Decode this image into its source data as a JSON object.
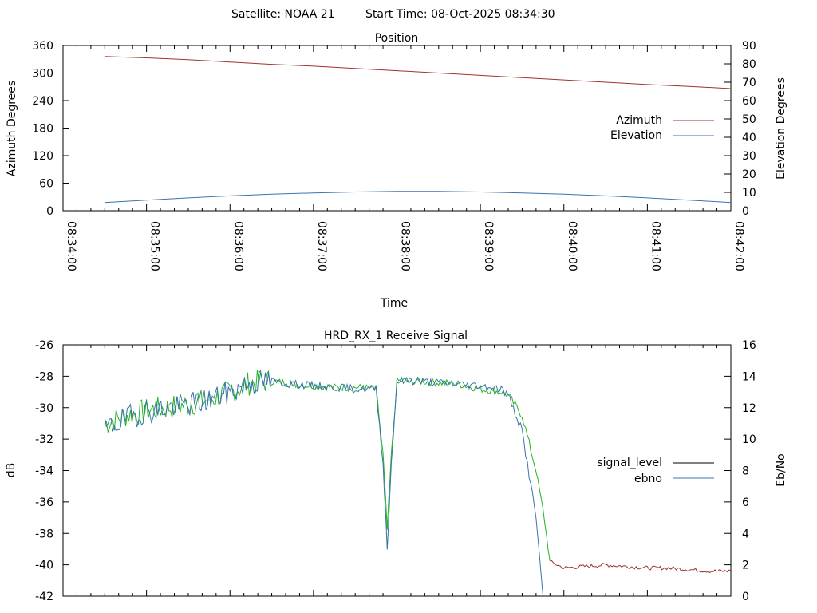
{
  "header": {
    "satellite": "Satellite: NOAA 21",
    "start_time": "Start Time: 08-Oct-2025 08:34:30"
  },
  "chart_data": [
    {
      "type": "line",
      "title": "Position",
      "xlabel": "Time",
      "ylabel": "Azimuth Degrees",
      "y2label": "Elevation Degrees",
      "xlim": [
        "08:34:00",
        "08:42:00"
      ],
      "x_ticks": [
        "08:34:00",
        "08:35:00",
        "08:36:00",
        "08:37:00",
        "08:38:00",
        "08:39:00",
        "08:40:00",
        "08:41:00",
        "08:42:00"
      ],
      "ylim": [
        0,
        360
      ],
      "y_ticks": [
        "0",
        "60",
        "120",
        "180",
        "240",
        "300",
        "360"
      ],
      "y2lim": [
        0,
        90
      ],
      "y2_ticks": [
        "0",
        "10",
        "20",
        "30",
        "40",
        "50",
        "60",
        "70",
        "80",
        "90"
      ],
      "legend_position": "right",
      "series": [
        {
          "name": "Azimuth",
          "axis": "y",
          "color": "#a0332d",
          "x": [
            "08:34:30",
            "08:35:00",
            "08:35:30",
            "08:36:00",
            "08:36:30",
            "08:37:00",
            "08:37:30",
            "08:38:00",
            "08:38:30",
            "08:39:00",
            "08:39:30",
            "08:40:00",
            "08:40:30",
            "08:41:00",
            "08:41:30",
            "08:42:00"
          ],
          "values": [
            336,
            333,
            329,
            324,
            319,
            315,
            310,
            305,
            300,
            295,
            290,
            285,
            280,
            275,
            271,
            266
          ]
        },
        {
          "name": "Elevation",
          "axis": "y2",
          "color": "#3a73ac",
          "x": [
            "08:34:30",
            "08:35:00",
            "08:35:30",
            "08:36:00",
            "08:36:30",
            "08:37:00",
            "08:37:30",
            "08:38:00",
            "08:38:30",
            "08:39:00",
            "08:39:30",
            "08:40:00",
            "08:40:30",
            "08:41:00",
            "08:41:30",
            "08:42:00"
          ],
          "values": [
            4.5,
            5.8,
            7.0,
            8.1,
            9.0,
            9.7,
            10.2,
            10.5,
            10.5,
            10.2,
            9.7,
            9.0,
            8.1,
            7.0,
            5.8,
            4.5
          ]
        }
      ]
    },
    {
      "type": "line",
      "title": "HRD_RX_1 Receive Signal",
      "ylabel": "dB",
      "y2label": "Eb/No",
      "xlim": [
        "08:34:00",
        "08:42:00"
      ],
      "ylim": [
        -42,
        -26
      ],
      "y_ticks": [
        "-42",
        "-40",
        "-38",
        "-36",
        "-34",
        "-32",
        "-30",
        "-28",
        "-26"
      ],
      "y2lim": [
        0,
        16
      ],
      "y2_ticks": [
        "0",
        "2",
        "4",
        "6",
        "8",
        "10",
        "12",
        "14",
        "16"
      ],
      "legend_position": "right",
      "series": [
        {
          "name": "signal_level",
          "axis": "y",
          "color": "#22b522",
          "low_color": "#a0332d",
          "legend_color": "#000000",
          "x": [
            "08:34:30",
            "08:34:45",
            "08:35:00",
            "08:35:15",
            "08:35:30",
            "08:35:45",
            "08:36:00",
            "08:36:15",
            "08:36:30",
            "08:36:45",
            "08:37:00",
            "08:37:15",
            "08:37:30",
            "08:37:45",
            "08:37:50",
            "08:37:53",
            "08:37:56",
            "08:38:00",
            "08:38:15",
            "08:38:30",
            "08:38:45",
            "08:39:00",
            "08:39:15",
            "08:39:20",
            "08:39:30",
            "08:39:40",
            "08:39:45",
            "08:39:50",
            "08:40:00",
            "08:40:15",
            "08:40:30",
            "08:40:45",
            "08:41:00",
            "08:41:15",
            "08:41:30",
            "08:41:45",
            "08:42:00"
          ],
          "values": [
            -31.0,
            -30.5,
            -30.2,
            -30.0,
            -29.8,
            -29.5,
            -29.0,
            -28.4,
            -28.3,
            -28.5,
            -28.6,
            -28.7,
            -28.7,
            -28.8,
            -33.0,
            -37.8,
            -33.0,
            -28.3,
            -28.3,
            -28.4,
            -28.5,
            -28.8,
            -29.0,
            -29.2,
            -30.5,
            -34.0,
            -36.5,
            -39.8,
            -40.2,
            -40.1,
            -40.0,
            -40.1,
            -40.2,
            -40.2,
            -40.3,
            -40.4,
            -40.4
          ]
        },
        {
          "name": "ebno",
          "axis": "y2",
          "color": "#3a73ac",
          "legend_color": "#3a73ac",
          "x": [
            "08:34:30",
            "08:34:45",
            "08:35:00",
            "08:35:15",
            "08:35:30",
            "08:35:45",
            "08:36:00",
            "08:36:15",
            "08:36:30",
            "08:36:45",
            "08:37:00",
            "08:37:15",
            "08:37:30",
            "08:37:45",
            "08:37:50",
            "08:37:53",
            "08:37:56",
            "08:38:00",
            "08:38:15",
            "08:38:30",
            "08:38:45",
            "08:39:00",
            "08:39:15",
            "08:39:20",
            "08:39:30",
            "08:39:40",
            "08:39:45"
          ],
          "values": [
            10.6,
            11.3,
            11.8,
            12.0,
            12.2,
            12.5,
            13.0,
            13.6,
            13.7,
            13.5,
            13.4,
            13.3,
            13.2,
            13.2,
            8.5,
            3.0,
            8.5,
            13.7,
            13.7,
            13.6,
            13.5,
            13.4,
            13.2,
            12.8,
            10.5,
            5.0,
            0.0
          ]
        }
      ]
    }
  ]
}
